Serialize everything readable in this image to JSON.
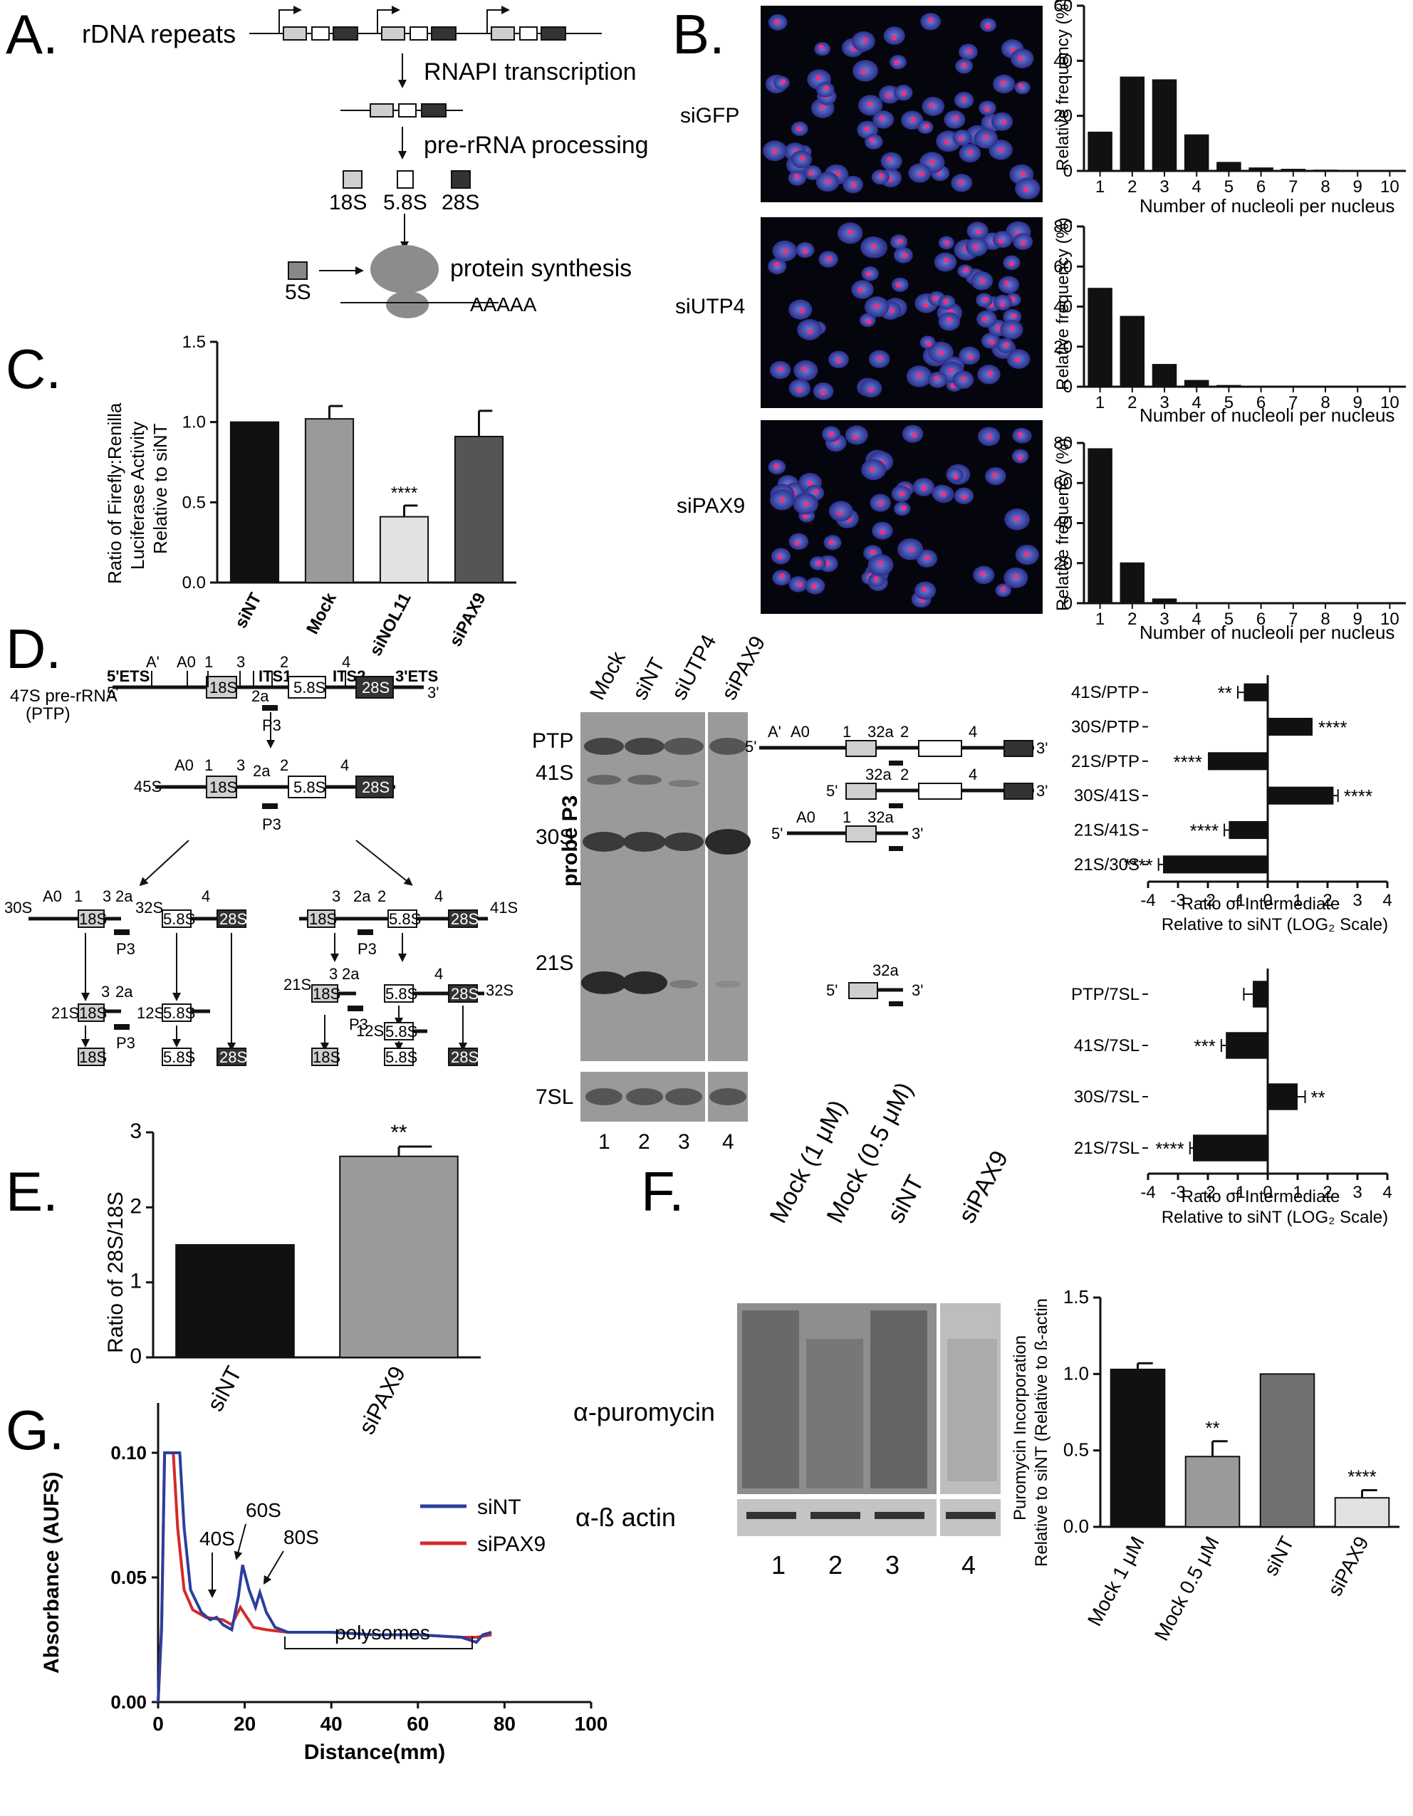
{
  "panel_labels": {
    "a": "A.",
    "b": "B.",
    "c": "C.",
    "d": "D.",
    "e": "E.",
    "f": "F.",
    "g": "G."
  },
  "panelA": {
    "rdna_label": "rDNA repeats",
    "step1": "RNAPI transcription",
    "step2": "pre-rRNA processing",
    "r18": "18S",
    "r58": "5.8S",
    "r28": "28S",
    "r5": "5S",
    "step3": "protein synthesis",
    "polya": "AAAAA"
  },
  "panelB": {
    "rows": [
      "siGFP",
      "siUTP4",
      "siPAX9"
    ],
    "ylabel": "Relative frequency (%)",
    "xlabel": "Number of nucleoli per nucleus"
  },
  "panelC": {
    "ylabel_lines": [
      "Ratio of Firefly:Renilla",
      "Luciferase Activity",
      "Relative to siNT"
    ],
    "sig": "****"
  },
  "panelD": {
    "pathway": {
      "pre_rrna": "47S pre-rRNA",
      "ptp": "(PTP)",
      "etsA": "5'ETS",
      "etsB": "3'ETS",
      "its1": "ITS1",
      "its2": "ITS2",
      "five": "5'",
      "three": "3'",
      "sites": {
        "aprime": "A'",
        "a0": "A0",
        "s1": "1",
        "s3": "3",
        "s2a": "2a",
        "s2": "2",
        "s4": "4",
        "s32a": "32a"
      },
      "blocks": {
        "b18": "18S",
        "b58": "5.8S",
        "b28": "28S"
      },
      "p3": "P3",
      "species": {
        "s45": "45S",
        "s30": "30S",
        "s32": "32S",
        "s41": "41S",
        "s21": "21S",
        "s12": "12S"
      }
    },
    "blot": {
      "lanes": [
        "Mock",
        "siNT",
        "siUTP4",
        "siPAX9"
      ],
      "bands": [
        "PTP",
        "41S",
        "30S",
        "21S"
      ],
      "probe": "probe P3",
      "loading": "7SL",
      "lane_numbers": [
        "1",
        "2",
        "3",
        "4"
      ]
    },
    "schema": {
      "aprime": "A'",
      "a0": "A0",
      "s1": "1",
      "s32a": "32a",
      "s2": "2",
      "s4": "4",
      "five": "5'",
      "three": "3'"
    },
    "ratio_xlabel": [
      "Ratio of Intermediate",
      "Relative to siNT (LOG₂ Scale)"
    ]
  },
  "panelE": {
    "ylabel": "Ratio of 28S/18S",
    "sig": "**"
  },
  "panelF": {
    "lanes": [
      "Mock (1 μM)",
      "Mock (0.5 μM)",
      "siNT",
      "siPAX9"
    ],
    "blot_label": "α-puromycin",
    "loading_label": "α-ß actin",
    "lane_numbers": [
      "1",
      "2",
      "3",
      "4"
    ],
    "ylabel_lines": [
      "Puromycin Incorporation",
      "Relative to siNT (Relative to ß-actin"
    ],
    "sigs": [
      "**",
      "****"
    ]
  },
  "panelG": {
    "annot": {
      "p40": "40S",
      "p60": "60S",
      "p80": "80S",
      "poly": "polysomes"
    }
  },
  "chart_data": [
    {
      "id": "B1",
      "type": "bar",
      "row": "siGFP",
      "categories": [
        "1",
        "2",
        "3",
        "4",
        "5",
        "6",
        "7",
        "8",
        "9",
        "10"
      ],
      "values": [
        14,
        34,
        33,
        13,
        3,
        1,
        0.5,
        0.2,
        0,
        0
      ],
      "ylim": [
        0,
        60
      ],
      "yticks": [
        0,
        20,
        40,
        60
      ],
      "ylabel": "Relative frequency (%)",
      "xlabel": "Number of nucleoli per nucleus"
    },
    {
      "id": "B2",
      "type": "bar",
      "row": "siUTP4",
      "categories": [
        "1",
        "2",
        "3",
        "4",
        "5",
        "6",
        "7",
        "8",
        "9",
        "10"
      ],
      "values": [
        49,
        35,
        11,
        3,
        0.5,
        0,
        0,
        0,
        0,
        0
      ],
      "ylim": [
        0,
        80
      ],
      "yticks": [
        0,
        20,
        40,
        60,
        80
      ],
      "ylabel": "Relative frequency (%)",
      "xlabel": "Number of nucleoli per nucleus"
    },
    {
      "id": "B3",
      "type": "bar",
      "row": "siPAX9",
      "categories": [
        "1",
        "2",
        "3",
        "4",
        "5",
        "6",
        "7",
        "8",
        "9",
        "10"
      ],
      "values": [
        77,
        20,
        2,
        0,
        0,
        0,
        0,
        0,
        0,
        0
      ],
      "ylim": [
        0,
        80
      ],
      "yticks": [
        0,
        20,
        40,
        60,
        80
      ],
      "ylabel": "Relative frequency (%)",
      "xlabel": "Number of nucleoli per nucleus"
    },
    {
      "id": "C",
      "type": "bar",
      "categories": [
        "siNT",
        "Mock",
        "siNOL11",
        "siPAX9"
      ],
      "values": [
        1.0,
        1.02,
        0.41,
        0.91
      ],
      "errors": [
        0,
        0.08,
        0.07,
        0.16
      ],
      "colors": [
        "#111111",
        "#9a9a9a",
        "#e2e2e2",
        "#555555"
      ],
      "ylim": [
        0,
        1.5
      ],
      "yticks": [
        0,
        0.5,
        1.0,
        1.5
      ],
      "yticklabels": [
        "0.0",
        "0.5",
        "1.0",
        "1.5"
      ],
      "significance": {
        "siNOL11": "****"
      }
    },
    {
      "id": "D1",
      "type": "bar",
      "orientation": "horizontal",
      "categories": [
        "41S/PTP",
        "30S/PTP",
        "21S/PTP",
        "30S/41S",
        "21S/41S",
        "21S/30S"
      ],
      "values": [
        -0.8,
        1.5,
        -2.0,
        2.2,
        -1.3,
        -3.5
      ],
      "errors": [
        0.2,
        0,
        0,
        0.15,
        0.15,
        0.15
      ],
      "significance": [
        "**",
        "****",
        "****",
        "****",
        "****",
        "****"
      ],
      "xlim": [
        -4,
        4
      ],
      "xticks": [
        -4,
        -3,
        -2,
        -1,
        0,
        1,
        2,
        3,
        4
      ],
      "xlabel": "Ratio of Intermediate Relative to siNT (LOG₂ Scale)"
    },
    {
      "id": "D2",
      "type": "bar",
      "orientation": "horizontal",
      "categories": [
        "PTP/7SL",
        "41S/7SL",
        "30S/7SL",
        "21S/7SL"
      ],
      "values": [
        -0.5,
        -1.4,
        1.0,
        -2.5
      ],
      "errors": [
        0.3,
        0.15,
        0.25,
        0.1
      ],
      "significance": [
        "",
        "***",
        "**",
        "****"
      ],
      "xlim": [
        -4,
        4
      ],
      "xticks": [
        -4,
        -3,
        -2,
        -1,
        0,
        1,
        2,
        3,
        4
      ],
      "xlabel": "Ratio of Intermediate Relative to siNT (LOG₂ Scale)"
    },
    {
      "id": "E",
      "type": "bar",
      "categories": [
        "siNT",
        "siPAX9"
      ],
      "values": [
        1.5,
        2.68
      ],
      "errors": [
        0,
        0.13
      ],
      "colors": [
        "#111111",
        "#9a9a9a"
      ],
      "ylim": [
        0,
        3
      ],
      "yticks": [
        0,
        1,
        2,
        3
      ],
      "ylabel": "Ratio of 28S/18S",
      "significance": {
        "siPAX9": "**"
      }
    },
    {
      "id": "F",
      "type": "bar",
      "categories": [
        "Mock 1 μM",
        "Mock 0.5 μM",
        "siNT",
        "siPAX9"
      ],
      "values": [
        1.03,
        0.46,
        1.0,
        0.19
      ],
      "errors": [
        0.04,
        0.1,
        0,
        0.05
      ],
      "colors": [
        "#111111",
        "#9a9a9a",
        "#707070",
        "#e2e2e2"
      ],
      "ylim": [
        0,
        1.5
      ],
      "yticks": [
        0,
        0.5,
        1.0,
        1.5
      ],
      "yticklabels": [
        "0.0",
        "0.5",
        "1.0",
        "1.5"
      ],
      "significance": {
        "Mock 0.5 μM": "**",
        "siPAX9": "****"
      }
    },
    {
      "id": "G",
      "type": "line",
      "xlabel": "Distance(mm)",
      "ylabel": "Absorbance (AUFS)",
      "xlim": [
        0,
        100
      ],
      "ylim": [
        0,
        0.12
      ],
      "xticks": [
        0,
        20,
        40,
        60,
        80,
        100
      ],
      "yticks": [
        0,
        0.05,
        0.1
      ],
      "yticklabels": [
        "0.00",
        "0.05",
        "0.10"
      ],
      "series": [
        {
          "name": "siNT",
          "color": "#2a3f9c",
          "points": [
            [
              0,
              0
            ],
            [
              0.8,
              0.03
            ],
            [
              1.5,
              0.1
            ],
            [
              5,
              0.1
            ],
            [
              6,
              0.07
            ],
            [
              7.5,
              0.045
            ],
            [
              10,
              0.036
            ],
            [
              12,
              0.033
            ],
            [
              13.5,
              0.034
            ],
            [
              15,
              0.031
            ],
            [
              17,
              0.029
            ],
            [
              18.5,
              0.042
            ],
            [
              19.5,
              0.055
            ],
            [
              21,
              0.045
            ],
            [
              22.5,
              0.038
            ],
            [
              23.5,
              0.044
            ],
            [
              25,
              0.036
            ],
            [
              27,
              0.03
            ],
            [
              30,
              0.028
            ],
            [
              40,
              0.028
            ],
            [
              50,
              0.027
            ],
            [
              60,
              0.027
            ],
            [
              70,
              0.026
            ],
            [
              73.5,
              0.024
            ],
            [
              75,
              0.027
            ],
            [
              77,
              0.028
            ]
          ]
        },
        {
          "name": "siPAX9",
          "color": "#d42a2a",
          "points": [
            [
              0,
              0
            ],
            [
              0.8,
              0.03
            ],
            [
              1.5,
              0.1
            ],
            [
              3.5,
              0.1
            ],
            [
              4.5,
              0.07
            ],
            [
              6,
              0.045
            ],
            [
              8,
              0.037
            ],
            [
              11,
              0.034
            ],
            [
              15,
              0.033
            ],
            [
              17,
              0.031
            ],
            [
              19,
              0.038
            ],
            [
              20.5,
              0.034
            ],
            [
              22,
              0.03
            ],
            [
              25,
              0.029
            ],
            [
              30,
              0.028
            ],
            [
              40,
              0.028
            ],
            [
              50,
              0.027
            ],
            [
              60,
              0.027
            ],
            [
              70,
              0.026
            ],
            [
              73.5,
              0.026
            ],
            [
              77,
              0.027
            ]
          ]
        }
      ]
    }
  ]
}
